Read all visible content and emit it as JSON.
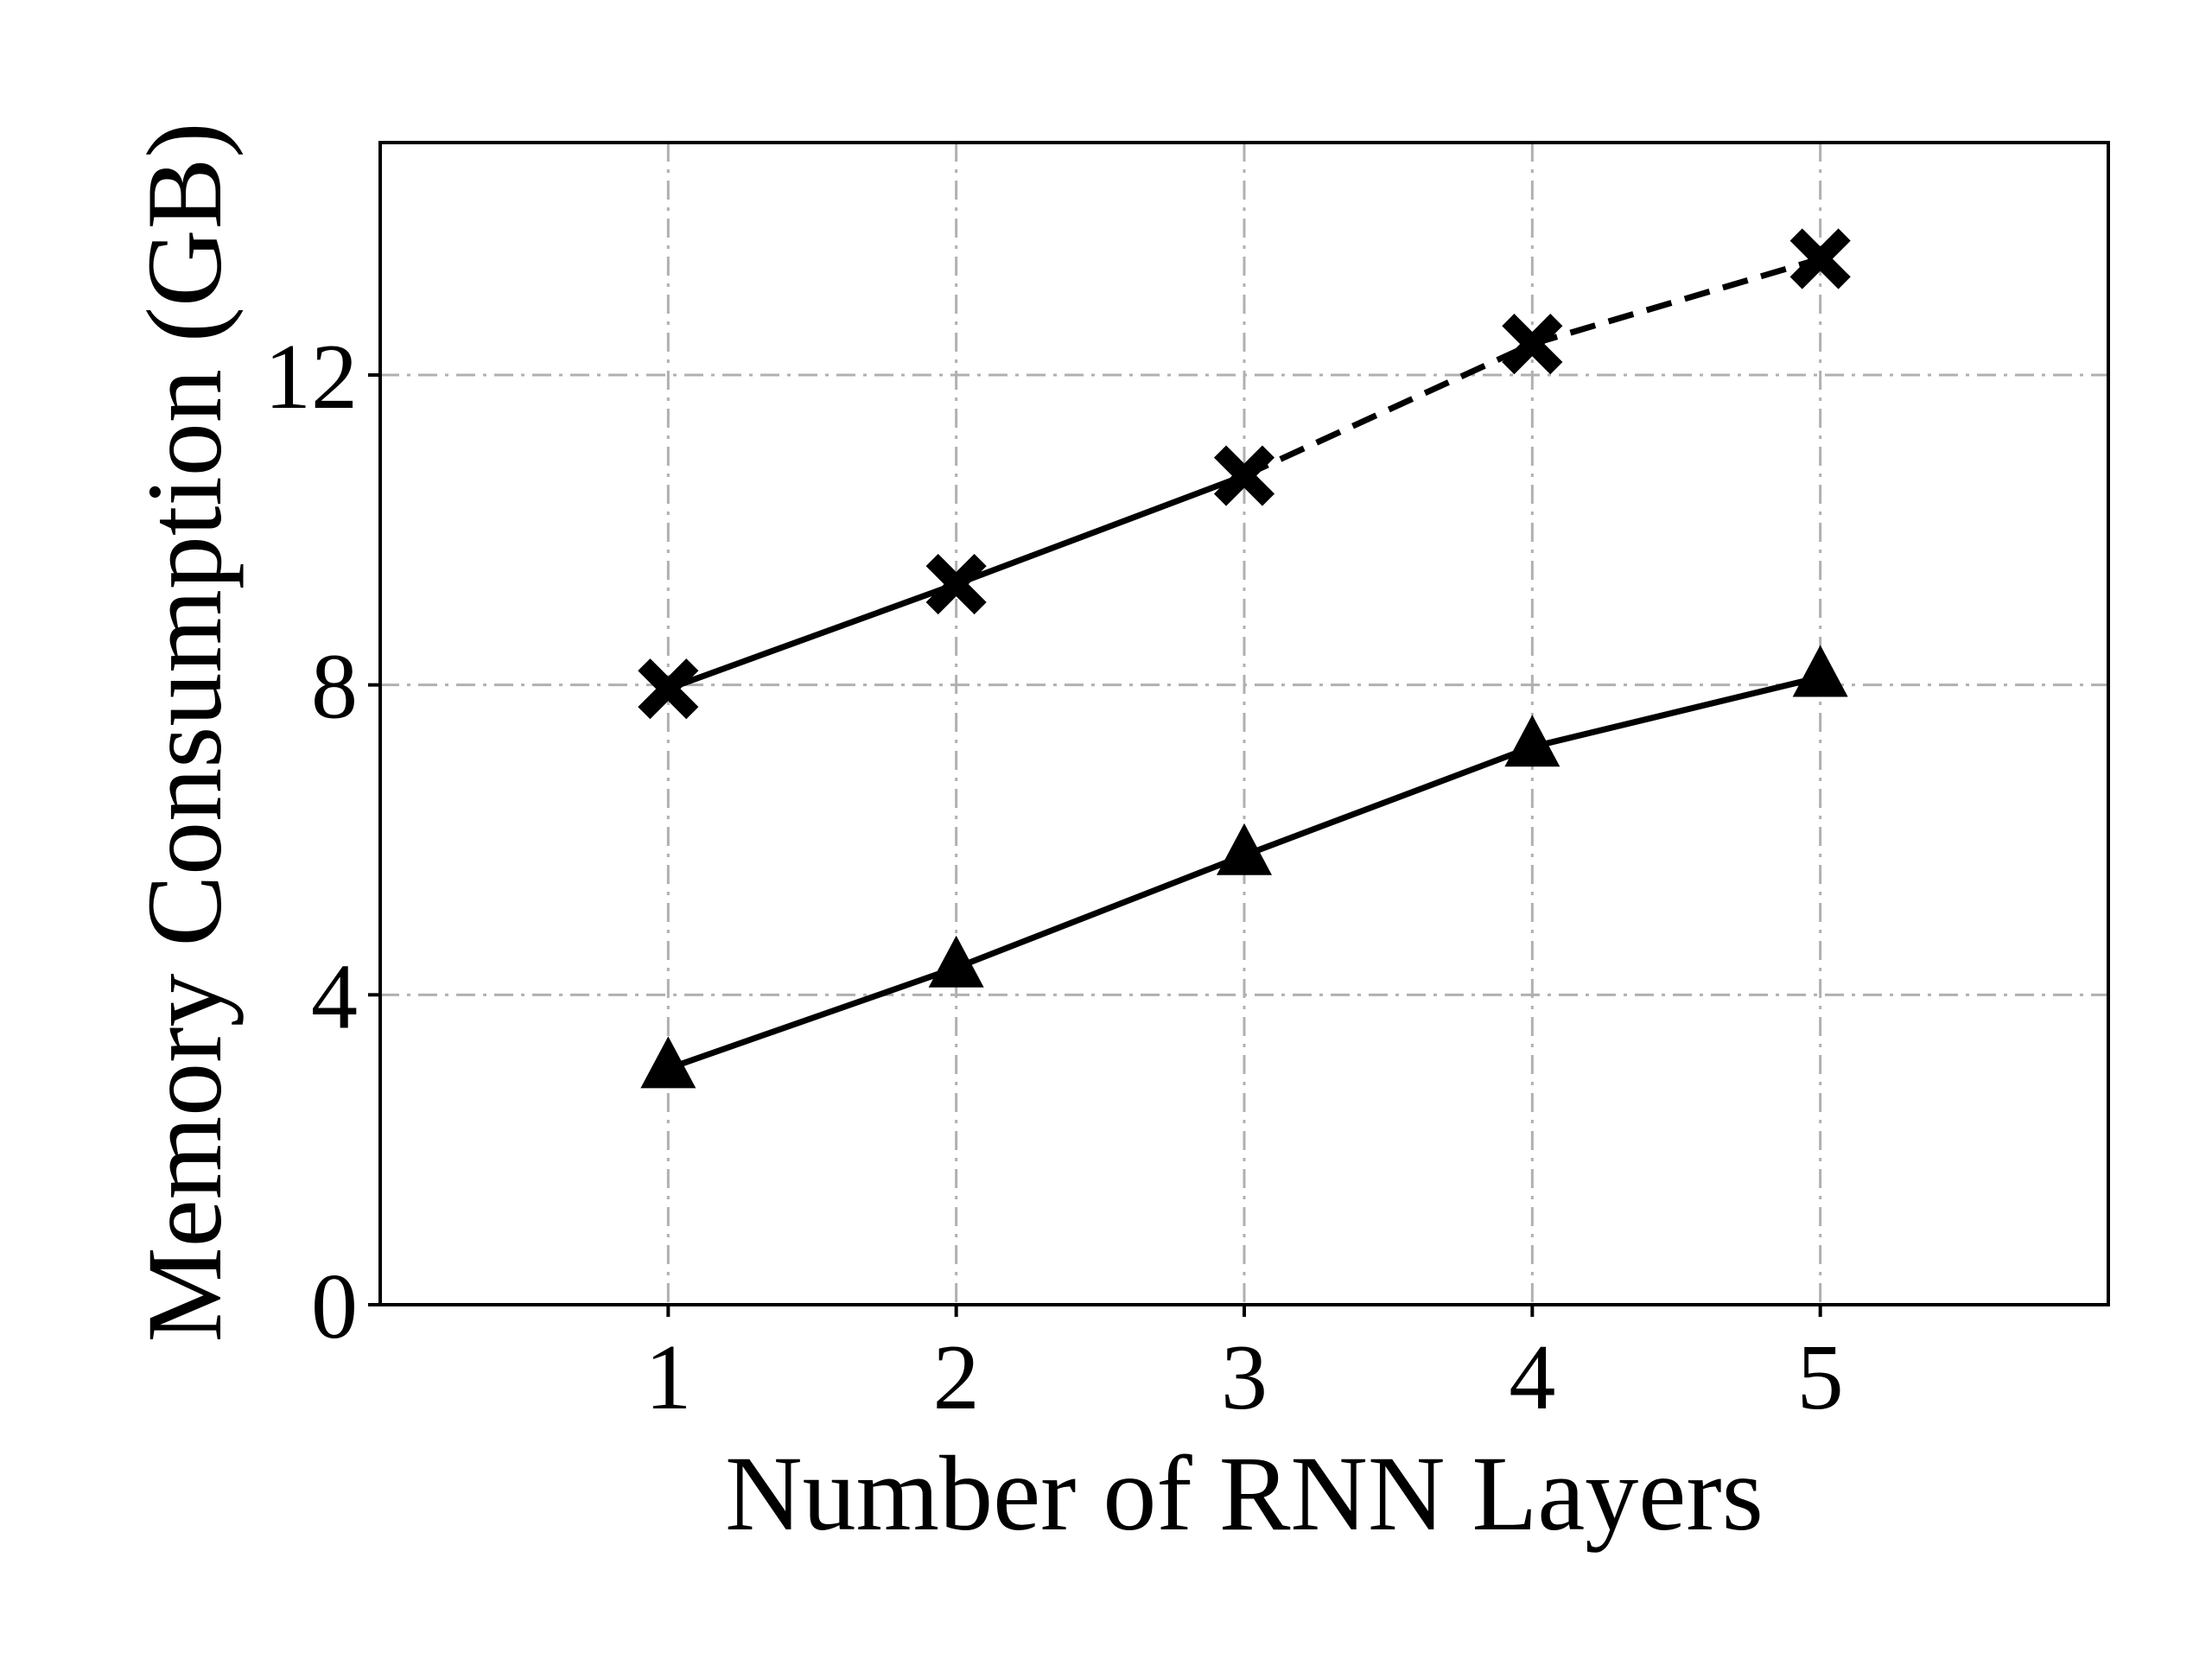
{
  "chart_data": {
    "type": "line",
    "title": "",
    "xlabel": "Number of RNN Layers",
    "ylabel": "Memory Consumption (GB)",
    "x": [
      1,
      2,
      3,
      4,
      5
    ],
    "xlim": [
      0,
      6
    ],
    "ylim": [
      0,
      15
    ],
    "xticks": [
      "1",
      "2",
      "3",
      "4",
      "5"
    ],
    "yticks": [
      0,
      4,
      8,
      12
    ],
    "ytick_labels": [
      "0",
      "4",
      "8",
      "12"
    ],
    "grid": true,
    "legend": "none",
    "series": [
      {
        "marker": "x-marker",
        "values": [
          7.95,
          9.3,
          10.7,
          12.4,
          13.5
        ],
        "line_style": "solid",
        "dashed_from_index": 2,
        "color": "#000000"
      },
      {
        "marker": "triangle-marker",
        "values": [
          3.05,
          4.35,
          5.8,
          7.2,
          8.1
        ],
        "line_style": "solid",
        "color": "#000000"
      }
    ],
    "colors": {
      "axes": "#000000",
      "grid": "#b0b0b0",
      "line": "#000000"
    }
  }
}
